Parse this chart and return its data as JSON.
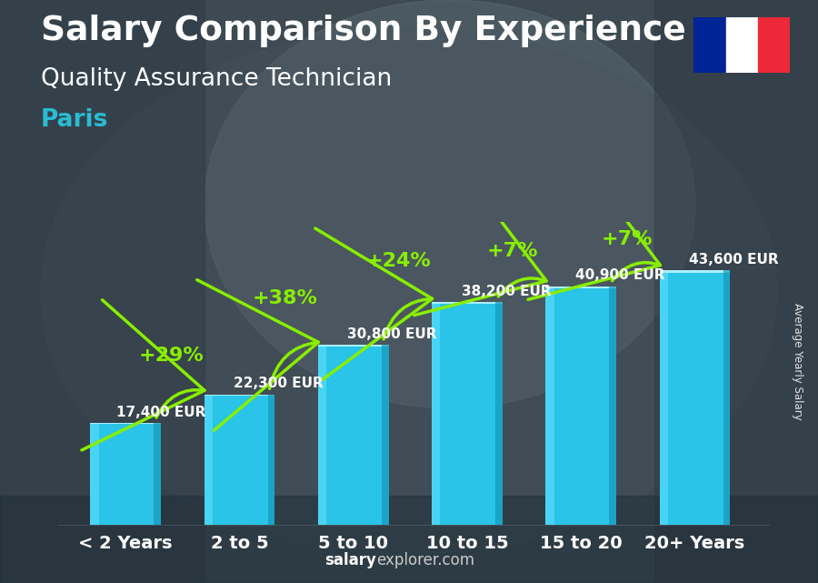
{
  "categories": [
    "< 2 Years",
    "2 to 5",
    "5 to 10",
    "10 to 15",
    "15 to 20",
    "20+ Years"
  ],
  "values": [
    17400,
    22300,
    30800,
    38200,
    40900,
    43600
  ],
  "value_labels": [
    "17,400 EUR",
    "22,300 EUR",
    "30,800 EUR",
    "38,200 EUR",
    "40,900 EUR",
    "43,600 EUR"
  ],
  "pct_changes": [
    "+29%",
    "+38%",
    "+24%",
    "+7%",
    "+7%"
  ],
  "bar_color": "#29c4e8",
  "bar_color_dark": "#1a8aaa",
  "bar_highlight": "#55ddff",
  "bg_color": "#3a4a55",
  "title": "Salary Comparison By Experience",
  "subtitle": "Quality Assurance Technician",
  "city": "Paris",
  "ylabel": "Average Yearly Salary",
  "watermark_bold": "salary",
  "watermark_normal": "explorer.com",
  "title_fontsize": 27,
  "subtitle_fontsize": 19,
  "city_fontsize": 19,
  "label_fontsize": 11,
  "pct_fontsize": 16,
  "tick_fontsize": 14,
  "green_color": "#88ee00",
  "white_color": "#ffffff",
  "cyan_color": "#29bcd4",
  "ylim_max": 52000,
  "bar_width": 0.62
}
